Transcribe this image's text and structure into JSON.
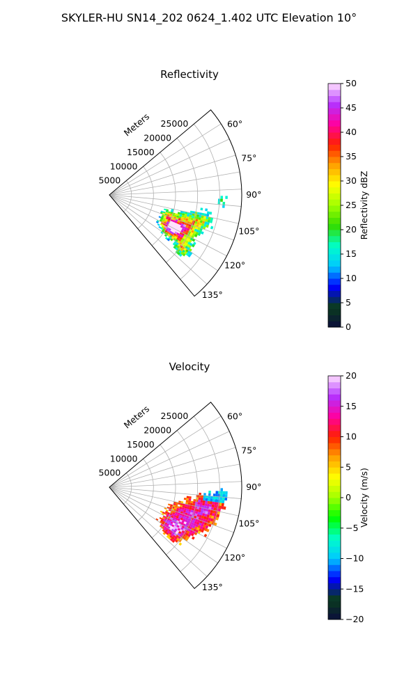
{
  "title": "SKYLER-HU  SN14_202  0624_1.402 UTC Elevation 10°",
  "chart_data": [
    {
      "type": "heatmap",
      "title": "Reflectivity",
      "radial_label": "Meters",
      "range_ticks": [
        "5000",
        "10000",
        "15000",
        "20000",
        "25000"
      ],
      "range_tick_values": [
        5000,
        10000,
        15000,
        20000,
        25000
      ],
      "rlim": [
        0,
        30000
      ],
      "azimuth_ticks": [
        "60°",
        "75°",
        "90°",
        "105°",
        "120°",
        "135°"
      ],
      "azimuth_tick_values": [
        60,
        75,
        90,
        105,
        120,
        135
      ],
      "azimuth_range": [
        50,
        140
      ],
      "grid": true,
      "colorbar": {
        "label": "Reflectivity dBZ",
        "ticks": [
          "0",
          "5",
          "10",
          "15",
          "20",
          "25",
          "30",
          "35",
          "40",
          "45",
          "50"
        ],
        "vmin": 0,
        "vmax": 50,
        "stops": [
          "#0b0e3c",
          "#0a3c1c",
          "#0000ff",
          "#00c8ff",
          "#00ffc8",
          "#32dc00",
          "#a0ff00",
          "#ffff00",
          "#ffa000",
          "#ff2000",
          "#ff00a0",
          "#b432ff",
          "#ffe0ff"
        ]
      }
    },
    {
      "type": "heatmap",
      "title": "Velocity",
      "radial_label": "Meters",
      "range_ticks": [
        "5000",
        "10000",
        "15000",
        "20000",
        "25000"
      ],
      "range_tick_values": [
        5000,
        10000,
        15000,
        20000,
        25000
      ],
      "rlim": [
        0,
        30000
      ],
      "azimuth_ticks": [
        "60°",
        "75°",
        "90°",
        "105°",
        "120°",
        "135°"
      ],
      "azimuth_tick_values": [
        60,
        75,
        90,
        105,
        120,
        135
      ],
      "azimuth_range": [
        50,
        140
      ],
      "grid": true,
      "colorbar": {
        "label": "Velocity (m/s)",
        "ticks": [
          "−20",
          "−15",
          "−10",
          "−5",
          "0",
          "5",
          "10",
          "15",
          "20"
        ],
        "vmin": -20,
        "vmax": 20,
        "stops": [
          "#0b0e3c",
          "#0a3c1c",
          "#0000ff",
          "#00c8ff",
          "#00ffc8",
          "#00ff00",
          "#a0ff00",
          "#ffff00",
          "#ffa000",
          "#ff2000",
          "#ff00a0",
          "#b432ff",
          "#ffe0ff"
        ]
      }
    }
  ]
}
